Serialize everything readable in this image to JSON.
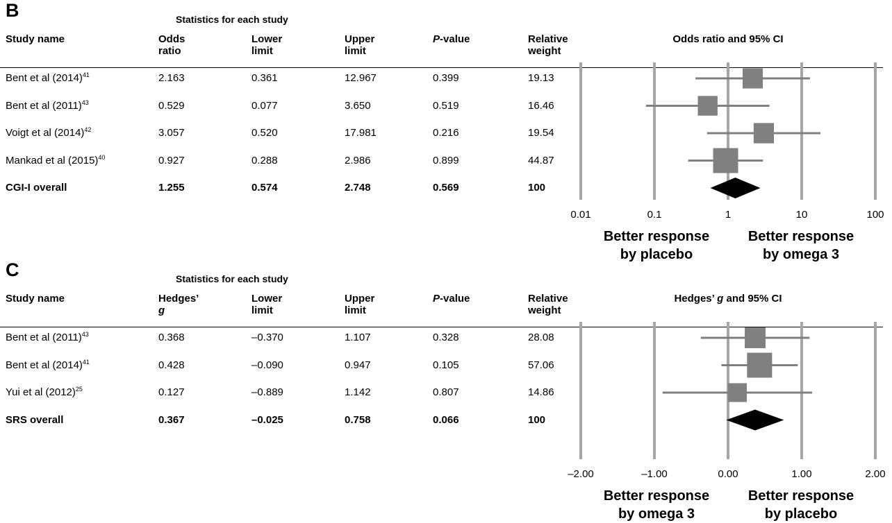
{
  "panels": [
    {
      "letter": "B",
      "stats_title": "Statistics for each study",
      "headers": {
        "study": "Study name",
        "effect1": "Odds",
        "effect2": "ratio",
        "effect_italic": false,
        "lower1": "Lower",
        "lower2": "limit",
        "upper1": "Upper",
        "upper2": "limit",
        "p_italic": "P",
        "p_rest": "-value",
        "weight1": "Relative",
        "weight2": "weight"
      },
      "plot_title": "Odds ratio and 95% CI",
      "plot_title_italic": "",
      "rows": [
        {
          "name": "Bent et al (2014)",
          "ref": "41",
          "effect": "2.163",
          "lower": "0.361",
          "upper": "12.967",
          "p": "0.399",
          "weight": "19.13"
        },
        {
          "name": "Bent et al (2011)",
          "ref": "43",
          "effect": "0.529",
          "lower": "0.077",
          "upper": "3.650",
          "p": "0.519",
          "weight": "16.46"
        },
        {
          "name": "Voigt et al (2014)",
          "ref": "42",
          "effect": "3.057",
          "lower": "0.520",
          "upper": "17.981",
          "p": "0.216",
          "weight": "19.54"
        },
        {
          "name": "Mankad et al (2015)",
          "ref": "40",
          "effect": "0.927",
          "lower": "0.288",
          "upper": "2.986",
          "p": "0.899",
          "weight": "44.87"
        }
      ],
      "overall": {
        "name": "CGI-I overall",
        "effect": "1.255",
        "lower": "0.574",
        "upper": "2.748",
        "p": "0.569",
        "weight": "100"
      },
      "axis_ticks": [
        "0.01",
        "0.1",
        "1",
        "10",
        "100"
      ],
      "left_label_1": "Better response",
      "left_label_2": "by placebo",
      "right_label_1": "Better response",
      "right_label_2": "by omega 3"
    },
    {
      "letter": "C",
      "stats_title": "Statistics for each study",
      "headers": {
        "study": "Study name",
        "effect1": "Hedges’",
        "effect2": "g",
        "effect_italic": true,
        "lower1": "Lower",
        "lower2": "limit",
        "upper1": "Upper",
        "upper2": "limit",
        "p_italic": "P",
        "p_rest": "-value",
        "weight1": "Relative",
        "weight2": "weight"
      },
      "plot_title": "Hedges’ ",
      "plot_title_italic": "g",
      "plot_title_rest": " and 95% CI",
      "rows": [
        {
          "name": "Bent et al (2011)",
          "ref": "43",
          "effect": "0.368",
          "lower": "–0.370",
          "upper": "1.107",
          "p": "0.328",
          "weight": "28.08"
        },
        {
          "name": "Bent et al (2014)",
          "ref": "41",
          "effect": "0.428",
          "lower": "–0.090",
          "upper": "0.947",
          "p": "0.105",
          "weight": "57.06"
        },
        {
          "name": "Yui et al (2012)",
          "ref": "25",
          "effect": "0.127",
          "lower": "–0.889",
          "upper": "1.142",
          "p": "0.807",
          "weight": "14.86"
        }
      ],
      "overall": {
        "name": "SRS overall",
        "effect": "0.367",
        "lower": "–0.025",
        "upper": "0.758",
        "p": "0.066",
        "weight": "100"
      },
      "axis_ticks": [
        "–2.00",
        "–1.00",
        "0.00",
        "1.00",
        "2.00"
      ],
      "left_label_1": "Better response",
      "left_label_2": "by omega 3",
      "right_label_1": "Better response",
      "right_label_2": "by placebo"
    }
  ],
  "chart_data": [
    {
      "type": "forest",
      "scale": "log",
      "xlim": [
        0.01,
        100
      ],
      "xticks": [
        0.01,
        0.1,
        1,
        10,
        100
      ],
      "studies": [
        {
          "label": "Bent et al (2014)",
          "estimate": 2.163,
          "lower": 0.361,
          "upper": 12.967,
          "weight": 19.13
        },
        {
          "label": "Bent et al (2011)",
          "estimate": 0.529,
          "lower": 0.077,
          "upper": 3.65,
          "weight": 16.46
        },
        {
          "label": "Voigt et al (2014)",
          "estimate": 3.057,
          "lower": 0.52,
          "upper": 17.981,
          "weight": 19.54
        },
        {
          "label": "Mankad et al (2015)",
          "estimate": 0.927,
          "lower": 0.288,
          "upper": 2.986,
          "weight": 44.87
        }
      ],
      "overall": {
        "label": "CGI-I overall",
        "estimate": 1.255,
        "lower": 0.574,
        "upper": 2.748
      },
      "colors": {
        "marker": "#808080",
        "ci": "#808080",
        "grid": "#a6a6a6",
        "diamond": "#000000"
      }
    },
    {
      "type": "forest",
      "scale": "linear",
      "xlim": [
        -2,
        2
      ],
      "xticks": [
        -2,
        -1,
        0,
        1,
        2
      ],
      "studies": [
        {
          "label": "Bent et al (2011)",
          "estimate": 0.368,
          "lower": -0.37,
          "upper": 1.107,
          "weight": 28.08
        },
        {
          "label": "Bent et al (2014)",
          "estimate": 0.428,
          "lower": -0.09,
          "upper": 0.947,
          "weight": 57.06
        },
        {
          "label": "Yui et al (2012)",
          "estimate": 0.127,
          "lower": -0.889,
          "upper": 1.142,
          "weight": 14.86
        }
      ],
      "overall": {
        "label": "SRS overall",
        "estimate": 0.367,
        "lower": -0.025,
        "upper": 0.758
      },
      "colors": {
        "marker": "#808080",
        "ci": "#808080",
        "grid": "#a6a6a6",
        "diamond": "#000000"
      }
    }
  ]
}
